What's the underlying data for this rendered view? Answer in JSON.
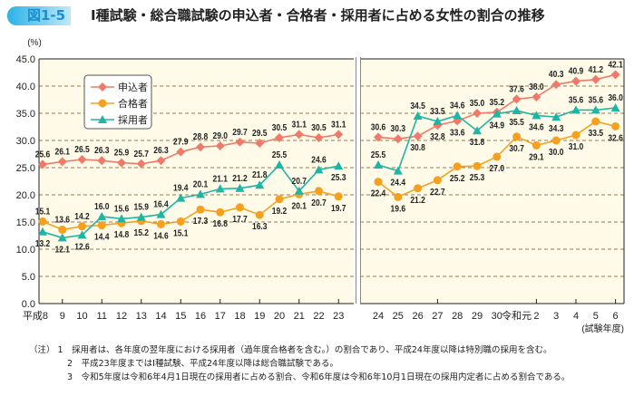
{
  "figure_label": "図1-5",
  "title": "Ⅰ種試験・総合職試験の申込者・合格者・採用者に占める女性の割合の推移",
  "notes": {
    "prefix": "（注）",
    "items": [
      {
        "num": "1",
        "text": "採用者は、各年度の翌年度における採用者（過年度合格者を含む。）の割合であり、平成24年度以降は特別職の採用を含む。"
      },
      {
        "num": "2",
        "text": "平成23年度まではⅠ種試験、平成24年度以降は総合職試験である。"
      },
      {
        "num": "3",
        "text": "令和5年度は令和6年4月1日現在の採用者に占める割合、令和6年度は令和6年10月1日現在の採用内定者に占める割合である。"
      }
    ]
  },
  "chart_data": {
    "type": "line",
    "ylabel": "(%)",
    "xlabel": "(試験年度)",
    "ylim": [
      0,
      45
    ],
    "yticks": [
      "0.0",
      "5.0",
      "10.0",
      "15.0",
      "20.0",
      "25.0",
      "30.0",
      "35.0",
      "40.0",
      "45.0"
    ],
    "grid": true,
    "axis_break": "between 23 and 24",
    "legend_position": "top-left",
    "categories": [
      "平成8",
      "9",
      "10",
      "11",
      "12",
      "13",
      "14",
      "15",
      "16",
      "17",
      "18",
      "19",
      "20",
      "21",
      "22",
      "23",
      "24",
      "25",
      "26",
      "27",
      "28",
      "29",
      "30",
      "令和元",
      "2",
      "3",
      "4",
      "5",
      "6"
    ],
    "series": [
      {
        "name": "申込者",
        "color": "#f07a6a",
        "marker": "diamond",
        "values": [
          25.6,
          26.1,
          26.5,
          26.3,
          25.9,
          25.7,
          26.3,
          27.9,
          28.8,
          29.0,
          29.7,
          29.5,
          30.5,
          31.1,
          30.5,
          31.1,
          30.6,
          30.3,
          30.8,
          32.8,
          33.6,
          35.0,
          35.2,
          37.6,
          38.0,
          40.3,
          40.9,
          41.2,
          42.1
        ]
      },
      {
        "name": "合格者",
        "color": "#f5a11f",
        "marker": "circle",
        "values": [
          15.1,
          13.6,
          14.2,
          14.4,
          14.8,
          15.2,
          14.6,
          15.1,
          17.3,
          16.8,
          17.7,
          16.3,
          19.2,
          20.1,
          20.7,
          19.7,
          22.4,
          19.6,
          21.2,
          22.7,
          25.2,
          25.3,
          27.0,
          30.7,
          29.1,
          30.0,
          31.0,
          33.5,
          32.6
        ]
      },
      {
        "name": "採用者",
        "color": "#1fb5a5",
        "marker": "triangle",
        "values": [
          13.2,
          12.1,
          12.6,
          16.0,
          15.6,
          15.9,
          16.4,
          19.4,
          20.1,
          21.1,
          21.2,
          21.8,
          25.5,
          20.7,
          24.6,
          25.3,
          25.5,
          24.4,
          34.5,
          33.5,
          34.6,
          31.8,
          34.9,
          35.5,
          34.6,
          34.3,
          35.6,
          35.6,
          36.0
        ]
      }
    ]
  }
}
